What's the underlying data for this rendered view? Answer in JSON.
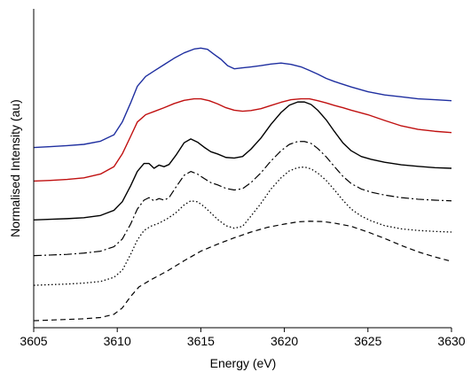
{
  "chart_data": {
    "type": "line",
    "title": "",
    "xlabel": "Energy (eV)",
    "ylabel": "Normalised Intensity (au)",
    "xlim": [
      3605,
      3630
    ],
    "ylim": [
      0,
      1
    ],
    "x_ticks": [
      "3605",
      "3610",
      "3615",
      "3620",
      "3625",
      "3630"
    ],
    "y_ticks_shown": false,
    "grid": false,
    "legend": "none",
    "series": [
      {
        "color": "#1f2fa0",
        "dash": "solid",
        "x": [
          3605,
          3606,
          3607,
          3608,
          3609,
          3609.8,
          3610.3,
          3610.8,
          3611.2,
          3611.7,
          3612.2,
          3612.8,
          3613.4,
          3614.0,
          3614.6,
          3615.0,
          3615.4,
          3615.8,
          3616.2,
          3616.6,
          3617.0,
          3617.5,
          3618.0,
          3618.6,
          3619.2,
          3619.8,
          3620.4,
          3621.0,
          3621.5,
          3622.0,
          3622.5,
          3623.0,
          3624.0,
          3625.0,
          3626.0,
          3627.0,
          3628.0,
          3629.0,
          3630.0
        ],
        "y": [
          0.565,
          0.568,
          0.571,
          0.575,
          0.585,
          0.605,
          0.645,
          0.705,
          0.757,
          0.788,
          0.805,
          0.825,
          0.845,
          0.862,
          0.874,
          0.877,
          0.873,
          0.857,
          0.842,
          0.822,
          0.812,
          0.815,
          0.818,
          0.822,
          0.827,
          0.83,
          0.826,
          0.818,
          0.807,
          0.795,
          0.782,
          0.772,
          0.755,
          0.74,
          0.73,
          0.724,
          0.718,
          0.715,
          0.712
        ]
      },
      {
        "color": "#c01010",
        "dash": "solid",
        "x": [
          3605,
          3606,
          3607,
          3608,
          3609,
          3609.8,
          3610.3,
          3610.8,
          3611.2,
          3611.7,
          3612.2,
          3612.8,
          3613.4,
          3614.0,
          3614.6,
          3615.0,
          3615.5,
          3616.0,
          3616.5,
          3617.0,
          3617.5,
          3618.0,
          3618.6,
          3619.2,
          3619.8,
          3620.4,
          3621.0,
          3621.5,
          3622.0,
          3622.5,
          3623.0,
          3623.5,
          3624.0,
          3625.0,
          3626.0,
          3627.0,
          3628.0,
          3629.0,
          3630.0
        ],
        "y": [
          0.46,
          0.462,
          0.465,
          0.47,
          0.482,
          0.505,
          0.545,
          0.6,
          0.645,
          0.668,
          0.678,
          0.69,
          0.703,
          0.713,
          0.718,
          0.718,
          0.712,
          0.702,
          0.69,
          0.682,
          0.679,
          0.681,
          0.687,
          0.697,
          0.707,
          0.715,
          0.718,
          0.718,
          0.712,
          0.705,
          0.697,
          0.69,
          0.682,
          0.668,
          0.65,
          0.633,
          0.622,
          0.616,
          0.612
        ]
      },
      {
        "color": "#000000",
        "dash": "solid",
        "x": [
          3605,
          3606,
          3607,
          3608,
          3609,
          3609.8,
          3610.3,
          3610.8,
          3611.2,
          3611.6,
          3611.9,
          3612.2,
          3612.5,
          3612.8,
          3613.1,
          3613.5,
          3614.0,
          3614.4,
          3614.8,
          3615.2,
          3615.6,
          3616.0,
          3616.5,
          3617.0,
          3617.5,
          3618.0,
          3618.6,
          3619.2,
          3619.8,
          3620.3,
          3620.8,
          3621.2,
          3621.6,
          3622.0,
          3622.5,
          3623.0,
          3623.5,
          3624.0,
          3624.6,
          3625.2,
          3626.0,
          3627.0,
          3628.0,
          3629.0,
          3630.0
        ],
        "y": [
          0.338,
          0.34,
          0.342,
          0.345,
          0.352,
          0.368,
          0.395,
          0.445,
          0.49,
          0.515,
          0.515,
          0.5,
          0.51,
          0.505,
          0.512,
          0.54,
          0.58,
          0.592,
          0.582,
          0.566,
          0.552,
          0.545,
          0.534,
          0.532,
          0.537,
          0.56,
          0.595,
          0.638,
          0.675,
          0.698,
          0.708,
          0.708,
          0.7,
          0.682,
          0.652,
          0.615,
          0.58,
          0.555,
          0.537,
          0.528,
          0.519,
          0.511,
          0.506,
          0.502,
          0.5
        ]
      },
      {
        "color": "#000000",
        "dash": "dashdot",
        "x": [
          3605,
          3606,
          3607,
          3608,
          3609,
          3609.8,
          3610.3,
          3610.8,
          3611.2,
          3611.6,
          3611.9,
          3612.2,
          3612.5,
          3612.8,
          3613.1,
          3613.5,
          3614.0,
          3614.4,
          3614.8,
          3615.2,
          3615.6,
          3616.0,
          3616.5,
          3617.0,
          3617.5,
          3618.0,
          3618.6,
          3619.2,
          3619.8,
          3620.3,
          3620.8,
          3621.2,
          3621.6,
          3622.0,
          3622.5,
          3623.0,
          3623.5,
          3624.0,
          3624.6,
          3625.2,
          3626.0,
          3627.0,
          3628.0,
          3629.0,
          3630.0
        ],
        "y": [
          0.226,
          0.228,
          0.23,
          0.234,
          0.24,
          0.254,
          0.278,
          0.325,
          0.372,
          0.4,
          0.408,
          0.398,
          0.405,
          0.4,
          0.408,
          0.44,
          0.478,
          0.49,
          0.482,
          0.468,
          0.455,
          0.448,
          0.437,
          0.432,
          0.436,
          0.455,
          0.486,
          0.523,
          0.555,
          0.575,
          0.584,
          0.584,
          0.578,
          0.562,
          0.536,
          0.505,
          0.475,
          0.452,
          0.435,
          0.425,
          0.416,
          0.408,
          0.403,
          0.4,
          0.398
        ]
      },
      {
        "color": "#000000",
        "dash": "dotted",
        "x": [
          3605,
          3606,
          3607,
          3608,
          3609,
          3609.8,
          3610.3,
          3610.8,
          3611.2,
          3611.6,
          3612.0,
          3612.5,
          3613.0,
          3613.5,
          3614.0,
          3614.4,
          3614.8,
          3615.2,
          3615.6,
          3616.0,
          3616.5,
          3617.0,
          3617.5,
          3618.0,
          3618.6,
          3619.2,
          3619.8,
          3620.3,
          3620.8,
          3621.2,
          3621.6,
          3622.0,
          3622.5,
          3623.0,
          3623.5,
          3624.0,
          3624.6,
          3625.2,
          3626.0,
          3627.0,
          3628.0,
          3629.0,
          3630.0
        ],
        "y": [
          0.133,
          0.135,
          0.137,
          0.14,
          0.145,
          0.158,
          0.18,
          0.23,
          0.275,
          0.305,
          0.318,
          0.328,
          0.342,
          0.36,
          0.385,
          0.398,
          0.395,
          0.38,
          0.36,
          0.34,
          0.32,
          0.312,
          0.318,
          0.35,
          0.39,
          0.435,
          0.47,
          0.492,
          0.502,
          0.504,
          0.498,
          0.485,
          0.462,
          0.432,
          0.4,
          0.372,
          0.35,
          0.335,
          0.32,
          0.31,
          0.305,
          0.302,
          0.3
        ]
      },
      {
        "color": "#000000",
        "dash": "dashed",
        "x": [
          3605,
          3606,
          3607,
          3608,
          3609,
          3609.8,
          3610.3,
          3610.8,
          3611.3,
          3612.0,
          3613.0,
          3614.0,
          3615.0,
          3616.0,
          3617.0,
          3618.0,
          3619.0,
          3620.0,
          3620.8,
          3621.5,
          3622.3,
          3623.0,
          3624.0,
          3625.0,
          3626.0,
          3627.0,
          3628.0,
          3629.0,
          3630.0
        ],
        "y": [
          0.022,
          0.024,
          0.026,
          0.028,
          0.032,
          0.042,
          0.062,
          0.098,
          0.128,
          0.15,
          0.178,
          0.21,
          0.24,
          0.262,
          0.282,
          0.3,
          0.315,
          0.325,
          0.332,
          0.334,
          0.333,
          0.328,
          0.318,
          0.3,
          0.28,
          0.258,
          0.238,
          0.222,
          0.208
        ]
      }
    ]
  }
}
